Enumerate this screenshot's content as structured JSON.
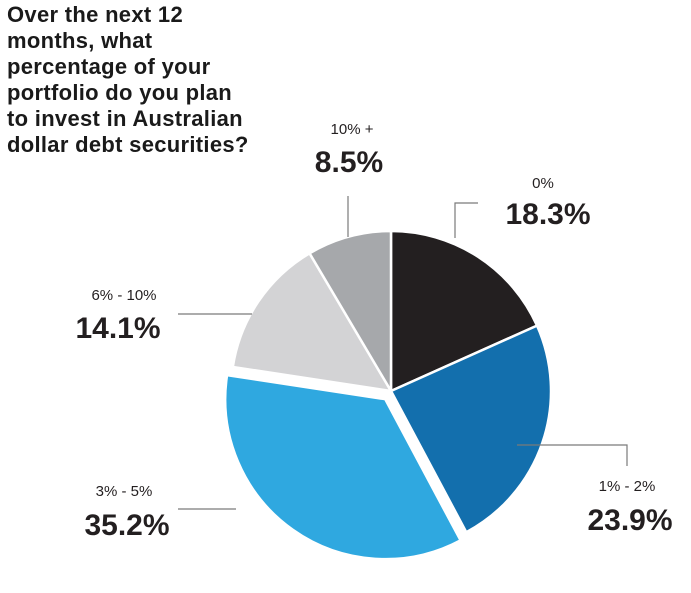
{
  "chart_data": {
    "type": "pie",
    "title": "Over the next 12 months, what percentage of your portfolio do you plan to invest in Australian dollar debt securities?",
    "slices": [
      {
        "label": "0%",
        "value": 18.3,
        "value_label": "18.3%",
        "color": "#231f20"
      },
      {
        "label": "1% - 2%",
        "value": 23.9,
        "value_label": "23.9%",
        "color": "#136fad"
      },
      {
        "label": "3% - 5%",
        "value": 35.2,
        "value_label": "35.2%",
        "color": "#2fa8e0",
        "exploded": true
      },
      {
        "label": "6% - 10%",
        "value": 14.1,
        "value_label": "14.1%",
        "color": "#d3d3d5"
      },
      {
        "label": "10% +",
        "value": 8.5,
        "value_label": "8.5%",
        "color": "#a6a8ab"
      }
    ],
    "start_angle_deg": 0,
    "direction": "clockwise"
  }
}
